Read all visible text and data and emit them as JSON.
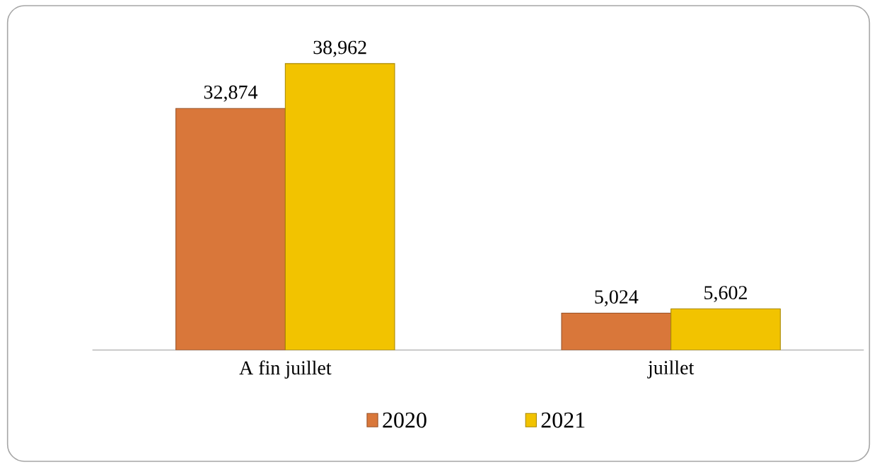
{
  "chart_data": {
    "type": "bar",
    "categories": [
      "A fin juillet",
      "juillet"
    ],
    "series": [
      {
        "name": "2020",
        "color": "#d9773a",
        "values": [
          32874,
          5024
        ],
        "value_labels": [
          "32,874",
          "5,024"
        ]
      },
      {
        "name": "2021",
        "color": "#f2c300",
        "values": [
          38962,
          5602
        ],
        "value_labels": [
          "38,962",
          "5,602"
        ]
      }
    ],
    "legend": "bottom"
  }
}
